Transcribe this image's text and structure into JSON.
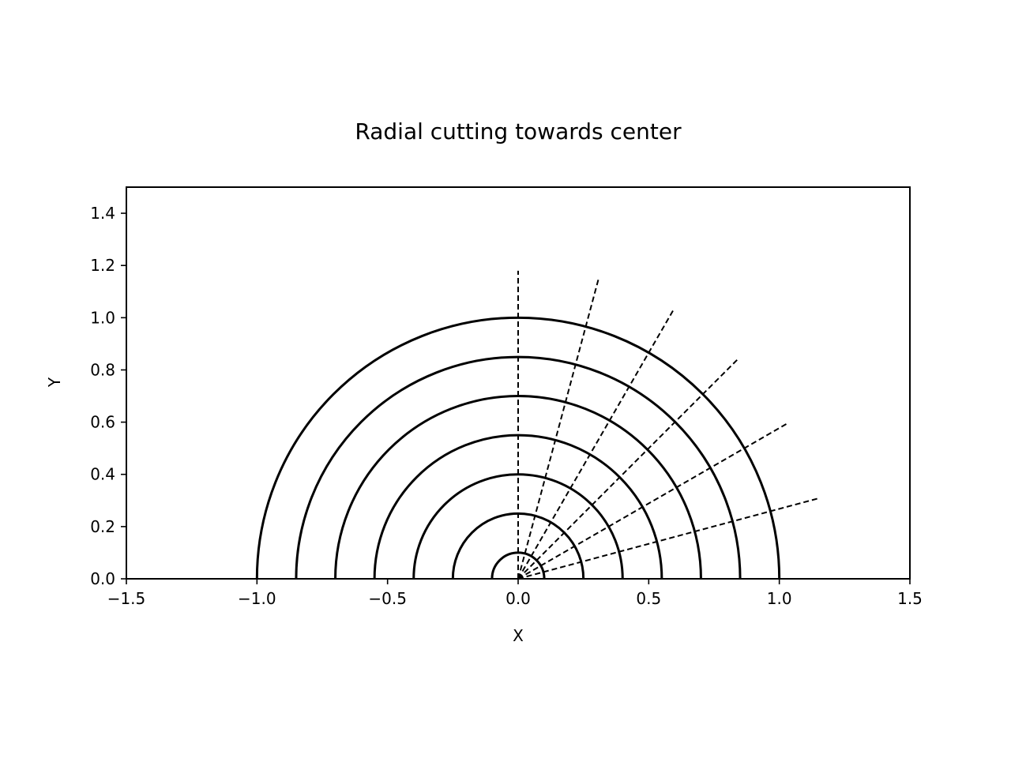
{
  "chart_data": {
    "type": "line",
    "title": "Radial cutting towards center",
    "xlabel": "X",
    "ylabel": "Y",
    "xlim": [
      -1.5,
      1.5
    ],
    "ylim": [
      0.0,
      1.5
    ],
    "xticks": [
      -1.5,
      -1.0,
      -0.5,
      0.0,
      0.5,
      1.0,
      1.5
    ],
    "xtick_labels": [
      "−1.5",
      "−1.0",
      "−0.5",
      "0.0",
      "0.5",
      "1.0",
      "1.5"
    ],
    "yticks": [
      0.0,
      0.2,
      0.4,
      0.6,
      0.8,
      1.0,
      1.2,
      1.4
    ],
    "ytick_labels": [
      "0.0",
      "0.2",
      "0.4",
      "0.6",
      "0.8",
      "1.0",
      "1.2",
      "1.4"
    ],
    "grid": false,
    "legend": false,
    "semicircle_radii": [
      1.0,
      0.85,
      0.7,
      0.55,
      0.4,
      0.25,
      0.1
    ],
    "semicircle_style": "solid",
    "radial_cut_lines": [
      {
        "angle_deg": 90,
        "from_radius": 0.0,
        "to_radius": 1.18
      },
      {
        "angle_deg": 75,
        "from_radius": 0.0,
        "to_radius": 1.19
      },
      {
        "angle_deg": 60,
        "from_radius": 0.0,
        "to_radius": 1.19
      },
      {
        "angle_deg": 45,
        "from_radius": 0.0,
        "to_radius": 1.19
      },
      {
        "angle_deg": 30,
        "from_radius": 0.0,
        "to_radius": 1.19
      },
      {
        "angle_deg": 15,
        "from_radius": 0.0,
        "to_radius": 1.19
      }
    ],
    "radial_cut_style": "dashed",
    "line_color": "#000000"
  }
}
